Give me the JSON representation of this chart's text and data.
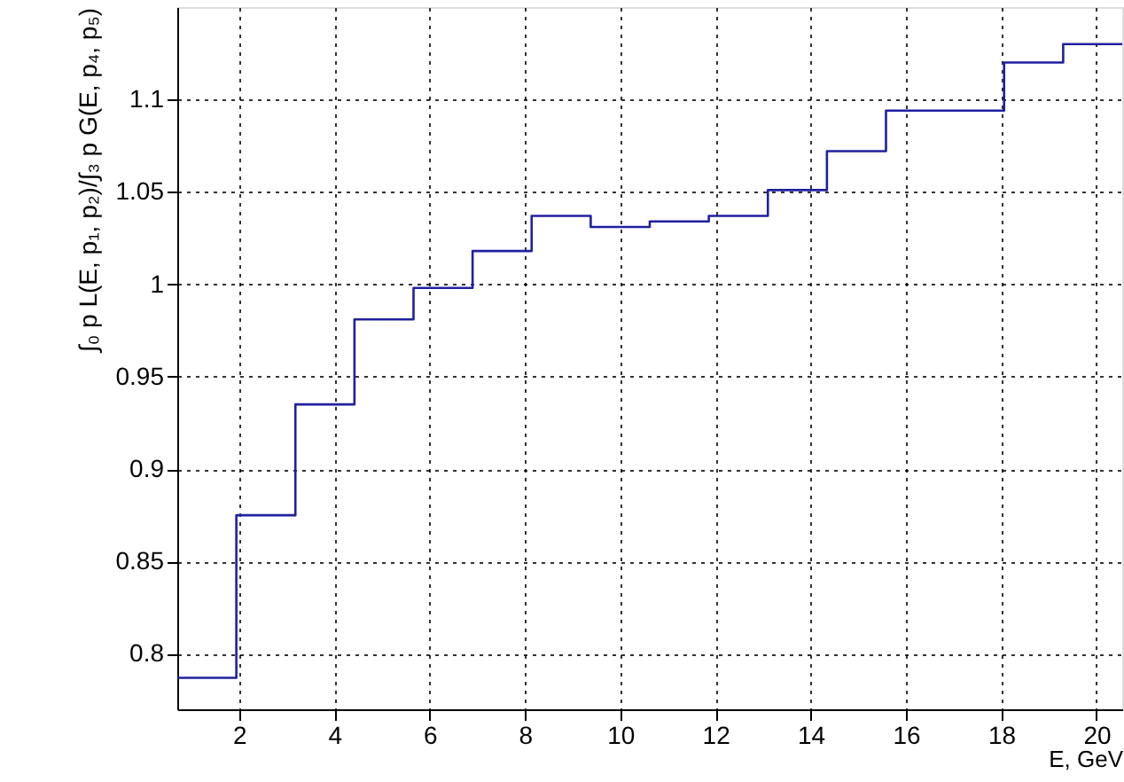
{
  "chart_data": {
    "type": "histogram",
    "xlabel": "E, GeV",
    "ylabel": "∫₀ p L(E, p₁, p₂)/∫₃ p G(E, p₄, p₅)",
    "bins": [
      0.7,
      1.94,
      3.18,
      4.42,
      5.66,
      6.9,
      8.14,
      9.38,
      10.62,
      11.86,
      13.1,
      14.34,
      15.58,
      16.82,
      18.06,
      19.3,
      20.54
    ],
    "values": [
      0.787,
      0.875,
      0.935,
      0.981,
      0.998,
      1.018,
      1.037,
      1.031,
      1.034,
      1.037,
      1.051,
      1.072,
      1.094,
      1.094,
      1.12,
      1.13
    ],
    "color": "#2020a0",
    "xlim": [
      0.7,
      20.54
    ],
    "xticks": [
      2,
      4,
      6,
      8,
      10,
      12,
      14,
      16,
      18,
      20
    ],
    "ylim": [
      0.77,
      1.15
    ],
    "yticks": [
      0.8,
      0.85,
      0.9,
      0.95,
      1,
      1.05,
      1.1
    ],
    "grid": true
  }
}
